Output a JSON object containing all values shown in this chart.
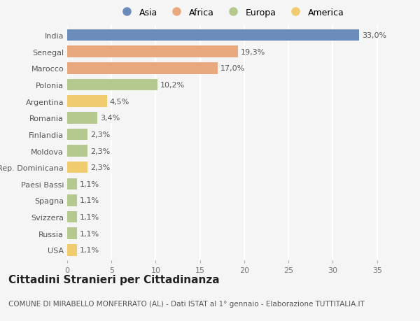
{
  "categories": [
    "India",
    "Senegal",
    "Marocco",
    "Polonia",
    "Argentina",
    "Romania",
    "Finlandia",
    "Moldova",
    "Rep. Dominicana",
    "Paesi Bassi",
    "Spagna",
    "Svizzera",
    "Russia",
    "USA"
  ],
  "values": [
    33.0,
    19.3,
    17.0,
    10.2,
    4.5,
    3.4,
    2.3,
    2.3,
    2.3,
    1.1,
    1.1,
    1.1,
    1.1,
    1.1
  ],
  "labels": [
    "33,0%",
    "19,3%",
    "17,0%",
    "10,2%",
    "4,5%",
    "3,4%",
    "2,3%",
    "2,3%",
    "2,3%",
    "1,1%",
    "1,1%",
    "1,1%",
    "1,1%",
    "1,1%"
  ],
  "continent": [
    "Asia",
    "Africa",
    "Africa",
    "Europa",
    "America",
    "Europa",
    "Europa",
    "Europa",
    "America",
    "Europa",
    "Europa",
    "Europa",
    "Europa",
    "America"
  ],
  "colors": {
    "Asia": "#6b8cba",
    "Africa": "#e8a97e",
    "Europa": "#b5c98e",
    "America": "#f0cc6e"
  },
  "xlim": [
    0,
    37
  ],
  "xticks": [
    0,
    5,
    10,
    15,
    20,
    25,
    30,
    35
  ],
  "title": "Cittadini Stranieri per Cittadinanza",
  "subtitle": "COMUNE DI MIRABELLO MONFERRATO (AL) - Dati ISTAT al 1° gennaio - Elaborazione TUTTITALIA.IT",
  "background_color": "#f5f5f5",
  "bar_height": 0.7,
  "grid_color": "#ffffff",
  "label_fontsize": 8,
  "tick_fontsize": 8,
  "title_fontsize": 11,
  "subtitle_fontsize": 7.5,
  "legend_order": [
    "Asia",
    "Africa",
    "Europa",
    "America"
  ]
}
